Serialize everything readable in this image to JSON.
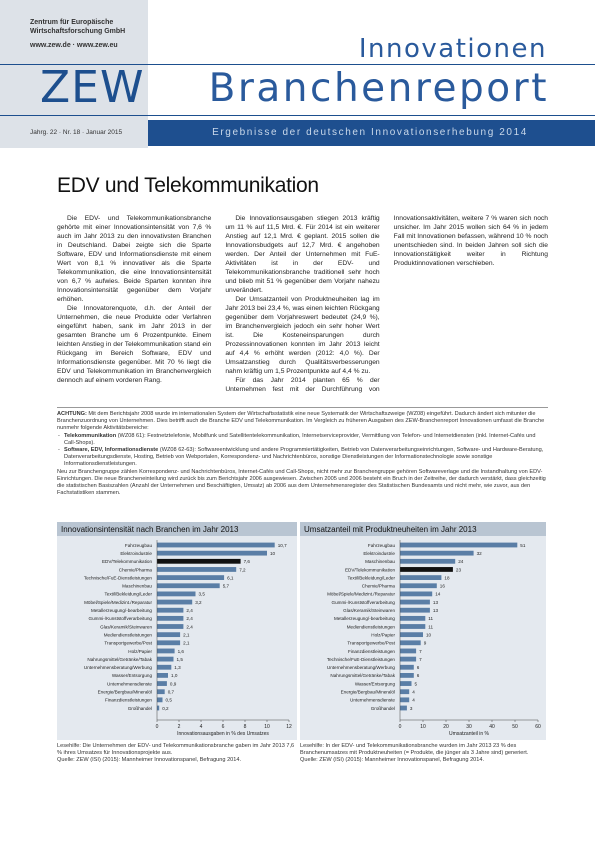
{
  "header": {
    "institute": [
      "Zentrum für Europäische",
      "Wirtschaftsforschung GmbH"
    ],
    "web": "www.zew.de · www.zew.eu",
    "logo": "ZEW",
    "series_top": "Innovationen",
    "series_main": "Branchenreport",
    "issue": "Jahrg. 22 · Nr. 18 · Januar 2015",
    "subtitle": "Ergebnisse der deutschen Innovationserhebung 2014"
  },
  "article": {
    "title": "EDV und Telekommunikation",
    "paragraphs": [
      "Die EDV- und Telekommunikationsbranche gehörte mit einer Innovationsintensität von 7,6 % auch im Jahr 2013 zu den innovativsten Branchen in Deutschland. Dabei zeigte sich die Sparte Software, EDV und Informationsdienste mit einem Wert von 8,1 % innovativer als die Sparte Telekommunikation, die eine Innovationsintensität von 6,7 % aufwies. Beide Sparten konnten ihre Innovationsintensität gegenüber dem Vorjahr erhöhen.",
      "Die Innovatorenquote, d.h. der Anteil der Unternehmen, die neue Produkte oder Verfahren eingeführt haben, sank im Jahr 2013 in der gesamten Branche um 6 Prozentpunkte. Einem leichten Anstieg in der Telekommunikation stand ein Rückgang im Bereich Software, EDV und Informationsdienste gegenüber. Mit 70 % liegt die EDV und Telekommunikation im Branchenvergleich dennoch auf einem vorderen Rang.",
      "Die Innovationsausgaben stiegen 2013 kräftig um 11 % auf 11,5 Mrd. €. Für 2014 ist ein weiterer Anstieg auf 12,1 Mrd. € geplant. 2015 sollen die Innovationsbudgets auf 12,7 Mrd. € angehoben werden. Der Anteil der Unternehmen mit FuE-Aktivitäten ist in der EDV- und Telekommunikationsbranche traditionell sehr hoch und blieb mit 51 % gegenüber dem Vorjahr nahezu unverändert.",
      "Der Umsatzanteil von Produktneuheiten lag im Jahr 2013 bei 23,4 %, was einen leichten Rückgang gegenüber dem Vorjahreswert bedeutet (24,9 %), im Branchenvergleich jedoch ein sehr hoher Wert ist. Die Kosteneinsparungen durch Prozessinnovationen konnten im Jahr 2013 leicht auf 4,4 % erhöht werden (2012: 4,0 %). Der Umsatzanstieg durch Qualitätsverbesserungen nahm kräftig um 1,5 Prozentpunkte auf 4,4 % zu.",
      "Für das Jahr 2014 planten 65 % der Unternehmen fest mit der Durchführung von Innovationsaktivitäten, weitere 7 % waren sich noch unsicher. Im Jahr 2015 wollen sich 64 % in jedem Fall mit Innovationen befassen, während 10 % noch unentschieden sind. In beiden Jahren soll sich die Innovationstätigkeit weiter in Richtung Produktinnovationen verschieben."
    ]
  },
  "note": {
    "label": "ACHTUNG:",
    "intro": "Mit dem Berichtsjahr 2008 wurde im internationalen System der Wirtschaftsstatistik eine neue Systematik der Wirtschaftszweige (WZ08) eingeführt. Dadurch ändert sich mitunter die Branchenzuordnung von Unternehmen. Dies betrifft auch die Branche EDV und Telekommunikation. Im Vergleich zu früheren Ausgaben des ZEW-Branchenreport Innovationen umfasst die Branche nunmehr folgende Aktivitätsbereiche:",
    "items": [
      {
        "term": "Telekommunikation",
        "text": "(WZ08 61): Festnetztelefonie, Mobilfunk und Satellitentelekommunikation, Internetserviceprovider, Vermittlung von Telefon- und Internetdiensten (inkl. Internet-Cafés und Call-Shops)."
      },
      {
        "term": "Software, EDV, Informationsdienste",
        "text": "(WZ08 62-63): Softwareentwicklung und andere Programmiertätigkeiten, Betrieb von Datenverarbeitungseinrichtungen, Software- und Hardware-Beratung, Datenverarbeitungsdienste, Hosting, Betrieb von Webportalen, Korrespondenz- und Nachrichtenbüros, sonstige Dienstleistungen der Informationstechnologie sowie sonstige Informationsdienstleistungen."
      }
    ],
    "outro": "Neu zur Branchengruppe zählen Korrespondenz- und Nachrichtenbüros, Internet-Cafés und Call-Shops, nicht mehr zur Branchengruppe gehören Softwareverlage und die Instandhaltung von EDV-Einrichtungen. Die neue Brancheneinteilung wird zurück bis zum Berichtsjahr 2006 ausgewiesen. Zwischen 2005 und 2006 besteht ein Bruch in der Zeitreihe, der dadurch verstärkt, dass gleichzeitig die statistischen Basiszahlen (Anzahl der Unternehmen und Beschäftigten, Umsatz) ab 2006 aus dem Unternehmensregister des Statistischen Bundesamts und nicht mehr, wie zuvor, aus den Fachstatistiken stammen."
  },
  "chart_data": [
    {
      "type": "bar",
      "orientation": "horizontal",
      "title": "Innovationsintensität nach Branchen im Jahr 2013",
      "categories": [
        "Fahrzeugbau",
        "Elektroindustrie",
        "EDV/Telekommunikation",
        "Chemie/Pharma",
        "Technische/FuE-Dienstleistungen",
        "Maschinenbau",
        "Textil/Bekleidung/Leder",
        "Möbel/Spiele/Medizint./Reparatur",
        "Metallerzeugung/-bearbeitung",
        "Gummi-/Kunststoffverarbeitung",
        "Glas/Keramik/Steinwaren",
        "Mediendienstleistungen",
        "Transportgewerbe/Post",
        "Holz/Papier",
        "Nahrungsmittel/Getränke/Tabak",
        "Unternehmensberatung/Werbung",
        "Wasser/Entsorgung",
        "Unternehmensdienste",
        "Energie/Bergbau/Mineralöl",
        "Finanzdienstleistungen",
        "Großhandel"
      ],
      "values": [
        10.7,
        10,
        7.6,
        7.2,
        6.1,
        5.7,
        3.5,
        3.2,
        2.4,
        2.4,
        2.4,
        2.1,
        2.1,
        1.6,
        1.5,
        1.3,
        1.0,
        0.9,
        0.7,
        0.5,
        0.2
      ],
      "value_labels": [
        "10,7",
        "10",
        "7,6",
        "7,2",
        "6,1",
        "5,7",
        "3,5",
        "3,2",
        "2,4",
        "2,4",
        "2,4",
        "2,1",
        "2,1",
        "1,6",
        "1,5",
        "1,3",
        "1,0",
        "0,9",
        "0,7",
        "0,5",
        "0,2"
      ],
      "colors": [
        "#5a7ea6",
        "#5a7ea6",
        "#111111",
        "#5a7ea6",
        "#5a7ea6",
        "#5a7ea6",
        "#5a7ea6",
        "#5a7ea6",
        "#5a7ea6",
        "#5a7ea6",
        "#5a7ea6",
        "#5a7ea6",
        "#5a7ea6",
        "#5a7ea6",
        "#5a7ea6",
        "#5a7ea6",
        "#5a7ea6",
        "#5a7ea6",
        "#5a7ea6",
        "#5a7ea6",
        "#5a7ea6"
      ],
      "xlim": [
        0,
        12
      ],
      "xticks": [
        0,
        2,
        4,
        6,
        8,
        10,
        12
      ],
      "x_label": "Innovationsausgaben in % des Umsatzes",
      "grid": false
    },
    {
      "type": "bar",
      "orientation": "horizontal",
      "title": "Umsatzanteil mit Produktneuheiten im Jahr 2013",
      "categories": [
        "Fahrzeugbau",
        "Elektroindustrie",
        "Maschinenbau",
        "EDV/Telekommunikation",
        "Textil/Bekleidung/Leder",
        "Chemie/Pharma",
        "Möbel/Spiele/Medizint./Reparatur",
        "Gummi-/Kunststoffverarbeitung",
        "Glas/Keramik/Steinwaren",
        "Metallerzeugung/-bearbeitung",
        "Mediendienstleistungen",
        "Holz/Papier",
        "Transportgewerbe/Post",
        "Finanzdienstleistungen",
        "Technische/FuE-Dienstleistungen",
        "Unternehmensberatung/Werbung",
        "Nahrungsmittel/Getränke/Tabak",
        "Wasser/Entsorgung",
        "Energie/Bergbau/Mineralöl",
        "Unternehmensdienste",
        "Großhandel"
      ],
      "values": [
        51,
        32,
        24,
        23,
        18,
        16,
        14,
        13,
        13,
        11,
        11,
        10,
        9,
        7,
        7,
        6,
        6,
        5,
        4,
        4,
        3
      ],
      "colors": [
        "#5a7ea6",
        "#5a7ea6",
        "#5a7ea6",
        "#111111",
        "#5a7ea6",
        "#5a7ea6",
        "#5a7ea6",
        "#5a7ea6",
        "#5a7ea6",
        "#5a7ea6",
        "#5a7ea6",
        "#5a7ea6",
        "#5a7ea6",
        "#5a7ea6",
        "#5a7ea6",
        "#5a7ea6",
        "#5a7ea6",
        "#5a7ea6",
        "#5a7ea6",
        "#5a7ea6",
        "#5a7ea6"
      ],
      "xlim": [
        0,
        60
      ],
      "xticks": [
        0,
        10,
        20,
        30,
        40,
        50,
        60
      ],
      "x_label": "Umsatzanteil in %",
      "grid": false
    }
  ],
  "captions": [
    {
      "reading": "Lesehilfe: Die Unternehmen der EDV- und Telekommunikationsbranche gaben im Jahr 2013 7,6 % ihres Umsatzes für Innovationsprojekte aus.",
      "source": "Quelle: ZEW (ISI) (2015): Mannheimer Innovationspanel, Befragung 2014."
    },
    {
      "reading": "Lesehilfe: In der EDV- und Telekommunikationsbranche wurden im Jahr 2013 23 % des Branchenumsatzes mit Produktneuheiten (= Produkte, die jünger als 3 Jahre sind) generiert.",
      "source": "Quelle: ZEW (ISI) (2015): Mannheimer Innovationspanel, Befragung 2014."
    }
  ]
}
